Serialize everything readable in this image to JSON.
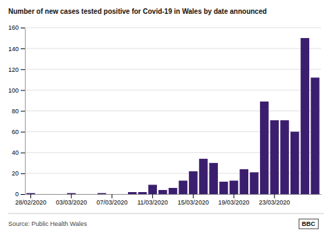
{
  "chart_data": {
    "type": "bar",
    "title": "Number of new cases tested positive for Covid-19 in Wales by date announced",
    "categories": [
      "28/02/2020",
      null,
      null,
      null,
      "03/03/2020",
      null,
      null,
      null,
      "07/03/2020",
      null,
      null,
      null,
      "11/03/2020",
      null,
      null,
      null,
      "15/03/2020",
      null,
      null,
      null,
      "19/03/2020",
      null,
      null,
      null,
      "23/03/2020",
      null,
      null,
      null,
      null
    ],
    "values": [
      1,
      0,
      0,
      0,
      1,
      0,
      0,
      1,
      0,
      0,
      2,
      2,
      9,
      4,
      6,
      13,
      22,
      34,
      30,
      12,
      13,
      24,
      21,
      89,
      71,
      71,
      60,
      150,
      112
    ],
    "color": "#3b1f6e",
    "ylim": [
      0,
      160
    ],
    "yticks": [
      0,
      20,
      40,
      60,
      80,
      100,
      120,
      140,
      160
    ],
    "grid": true,
    "annotations": [
      "Source: Public Health Wales",
      "BBC"
    ]
  }
}
